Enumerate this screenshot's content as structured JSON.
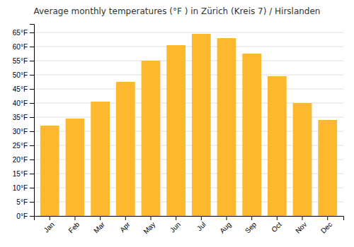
{
  "chart_data": {
    "type": "bar",
    "title": "Average monthly temperatures (°F ) in Zürich (Kreis 7) / Hirslanden",
    "categories": [
      "Jan",
      "Feb",
      "Mar",
      "Apr",
      "May",
      "Jun",
      "Jul",
      "Aug",
      "Sep",
      "Oct",
      "Nov",
      "Dec"
    ],
    "values": [
      32,
      34.5,
      40.5,
      47.5,
      55,
      60.5,
      64.5,
      63,
      57.5,
      49.5,
      40,
      34
    ],
    "color": "#FDB92E",
    "ylim": [
      0,
      68
    ],
    "yticks": [
      {
        "value": 0,
        "label": "0°F"
      },
      {
        "value": 5,
        "label": "5°F"
      },
      {
        "value": 10,
        "label": "10°F"
      },
      {
        "value": 15,
        "label": "15°F"
      },
      {
        "value": 20,
        "label": "20°F"
      },
      {
        "value": 25,
        "label": "25°F"
      },
      {
        "value": 30,
        "label": "30°F"
      },
      {
        "value": 35,
        "label": "35°F"
      },
      {
        "value": 40,
        "label": "40°F"
      },
      {
        "value": 45,
        "label": "45°F"
      },
      {
        "value": 50,
        "label": "50°F"
      },
      {
        "value": 55,
        "label": "55°F"
      },
      {
        "value": 60,
        "label": "60°F"
      },
      {
        "value": 65,
        "label": "65°F"
      }
    ],
    "grid": true
  }
}
